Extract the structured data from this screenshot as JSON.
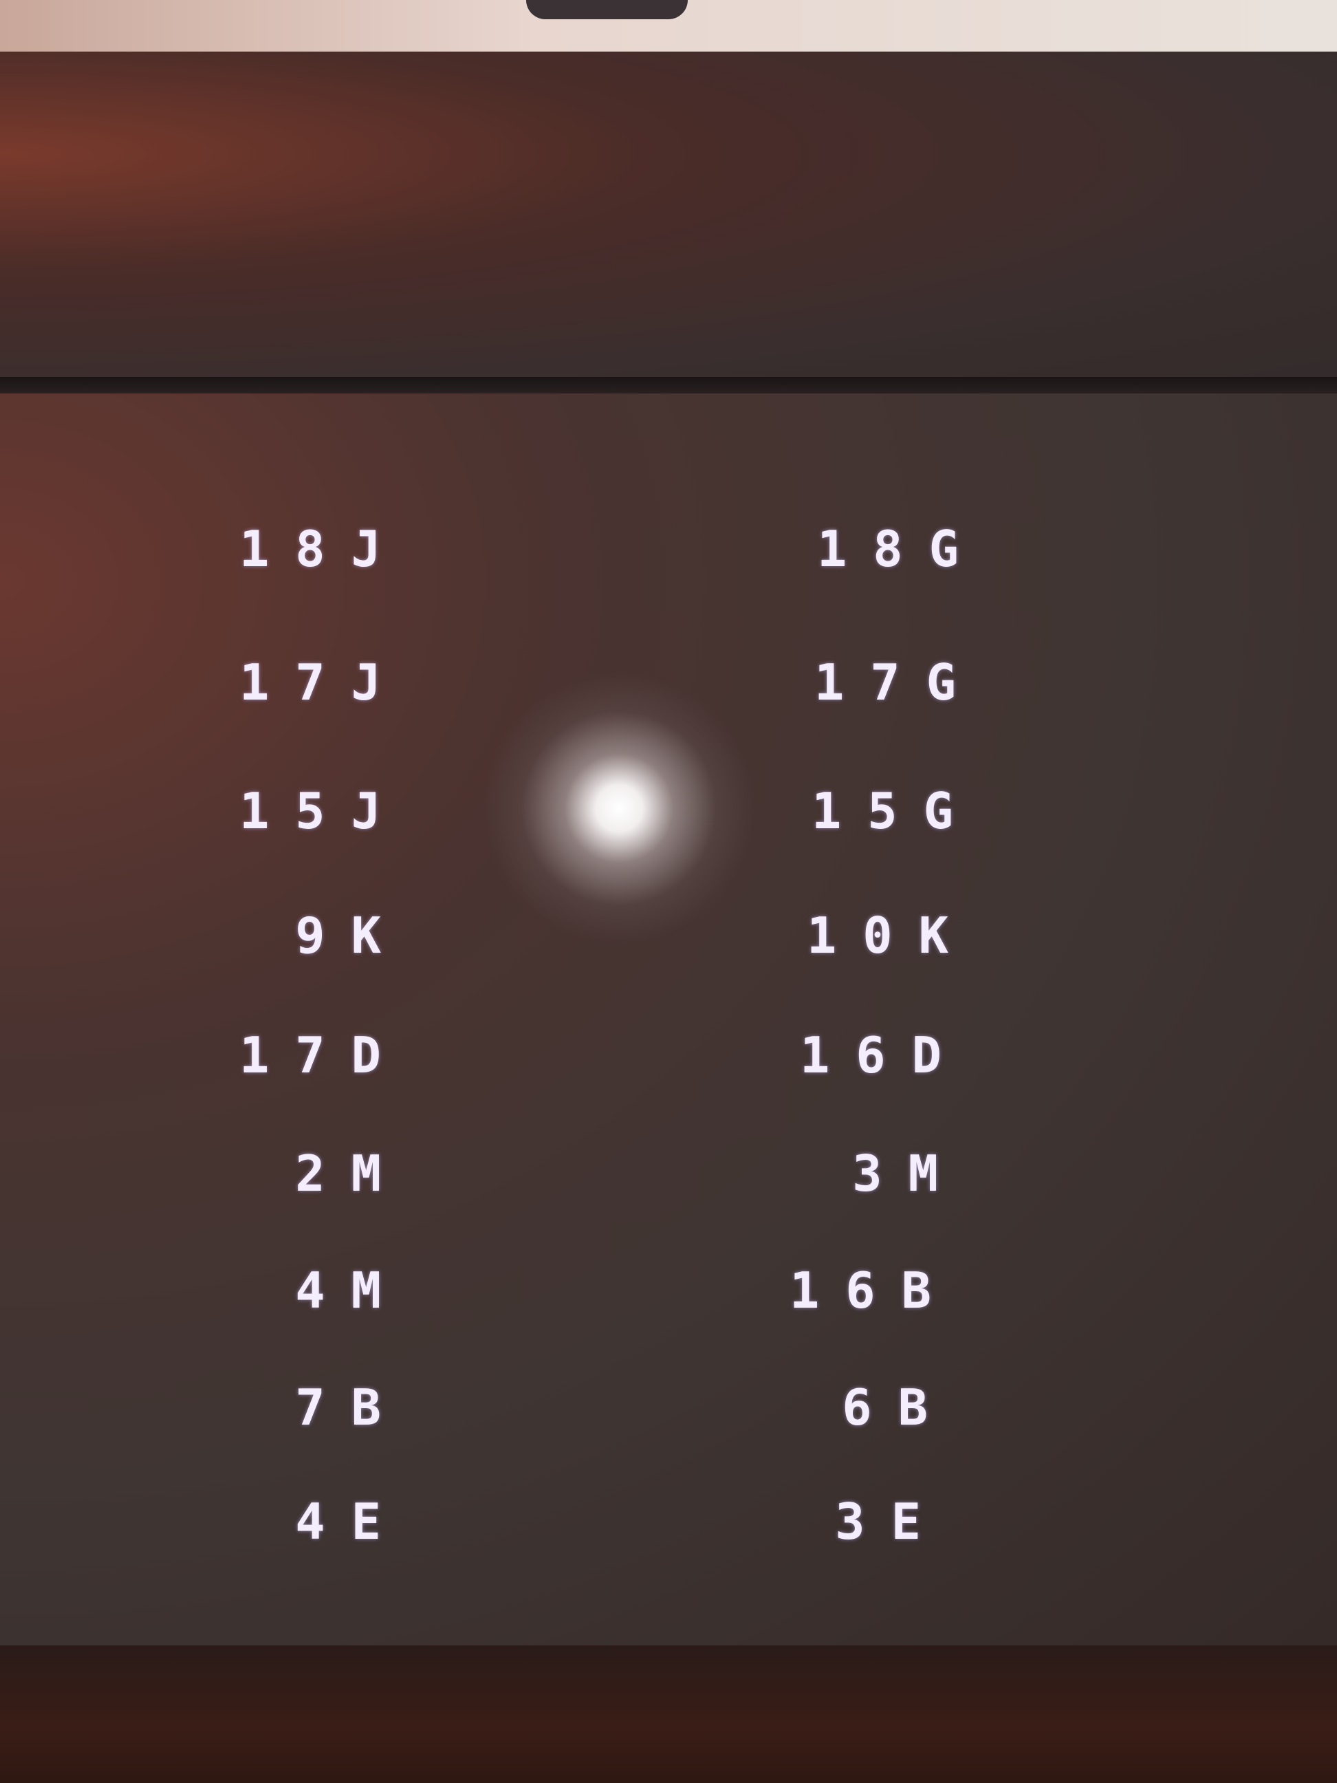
{
  "display": {
    "left_column": [
      "18J",
      "17J",
      "15J",
      "9K",
      "17D",
      "2M",
      "4M",
      "7B",
      "4E"
    ],
    "right_column": [
      "18G",
      "17G",
      "15G",
      "10K",
      "16D",
      "3M",
      "16B",
      "6B",
      "3E"
    ]
  },
  "colors": {
    "text": "#f4eefc",
    "screen": "#3f3533",
    "bezel": "#3a2e2e"
  }
}
